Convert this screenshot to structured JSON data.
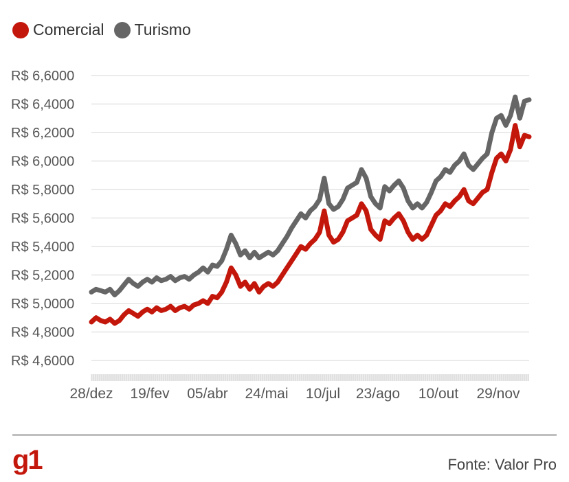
{
  "legend": [
    {
      "name": "Comercial",
      "color": "#c4170c"
    },
    {
      "name": "Turismo",
      "color": "#666666"
    }
  ],
  "footer": {
    "logo": "g1",
    "logo_color": "#c4170c",
    "source": "Fonte: Valor Pro"
  },
  "chart_data": {
    "type": "line",
    "title": "",
    "xlabel": "",
    "ylabel": "",
    "x_ticks": [
      "28/dez",
      "19/fev",
      "05/abr",
      "24/mai",
      "10/jul",
      "23/ago",
      "10/out",
      "29/nov"
    ],
    "y_ticks": [
      "R$ 4,6000",
      "R$ 4,8000",
      "R$ 5,0000",
      "R$ 5,2000",
      "R$ 5,4000",
      "R$ 5,6000",
      "R$ 5,8000",
      "R$ 6,0000",
      "R$ 6,2000",
      "R$ 6,4000",
      "R$ 6,6000"
    ],
    "ylim": [
      4.6,
      6.6
    ],
    "grid": true,
    "legend_position": "top-left",
    "series": [
      {
        "name": "Comercial",
        "color": "#c4170c",
        "values": [
          4.87,
          4.9,
          4.88,
          4.87,
          4.89,
          4.86,
          4.88,
          4.92,
          4.95,
          4.93,
          4.91,
          4.94,
          4.96,
          4.94,
          4.97,
          4.95,
          4.96,
          4.98,
          4.95,
          4.97,
          4.98,
          4.96,
          4.99,
          5.0,
          5.02,
          5.0,
          5.05,
          5.04,
          5.08,
          5.15,
          5.25,
          5.2,
          5.12,
          5.15,
          5.1,
          5.14,
          5.08,
          5.12,
          5.14,
          5.12,
          5.15,
          5.2,
          5.25,
          5.3,
          5.35,
          5.4,
          5.38,
          5.42,
          5.45,
          5.5,
          5.65,
          5.48,
          5.43,
          5.45,
          5.5,
          5.58,
          5.6,
          5.62,
          5.7,
          5.65,
          5.52,
          5.48,
          5.45,
          5.58,
          5.56,
          5.6,
          5.63,
          5.58,
          5.5,
          5.45,
          5.48,
          5.45,
          5.48,
          5.55,
          5.62,
          5.65,
          5.7,
          5.68,
          5.72,
          5.75,
          5.8,
          5.72,
          5.7,
          5.74,
          5.78,
          5.8,
          5.92,
          6.02,
          6.05,
          6.0,
          6.08,
          6.25,
          6.1,
          6.18,
          6.17
        ]
      },
      {
        "name": "Turismo",
        "color": "#666666",
        "values": [
          5.08,
          5.1,
          5.09,
          5.08,
          5.1,
          5.06,
          5.09,
          5.13,
          5.17,
          5.14,
          5.12,
          5.15,
          5.17,
          5.15,
          5.18,
          5.16,
          5.17,
          5.19,
          5.16,
          5.18,
          5.19,
          5.17,
          5.2,
          5.22,
          5.25,
          5.22,
          5.27,
          5.26,
          5.3,
          5.38,
          5.48,
          5.42,
          5.34,
          5.37,
          5.32,
          5.36,
          5.32,
          5.34,
          5.36,
          5.34,
          5.37,
          5.42,
          5.47,
          5.53,
          5.58,
          5.63,
          5.6,
          5.65,
          5.68,
          5.73,
          5.88,
          5.7,
          5.66,
          5.68,
          5.73,
          5.81,
          5.83,
          5.85,
          5.94,
          5.88,
          5.75,
          5.7,
          5.67,
          5.82,
          5.79,
          5.83,
          5.86,
          5.81,
          5.72,
          5.67,
          5.7,
          5.67,
          5.71,
          5.78,
          5.86,
          5.89,
          5.94,
          5.92,
          5.97,
          6.0,
          6.05,
          5.97,
          5.94,
          5.98,
          6.02,
          6.05,
          6.2,
          6.3,
          6.32,
          6.25,
          6.32,
          6.45,
          6.3,
          6.42,
          6.43
        ]
      }
    ]
  }
}
